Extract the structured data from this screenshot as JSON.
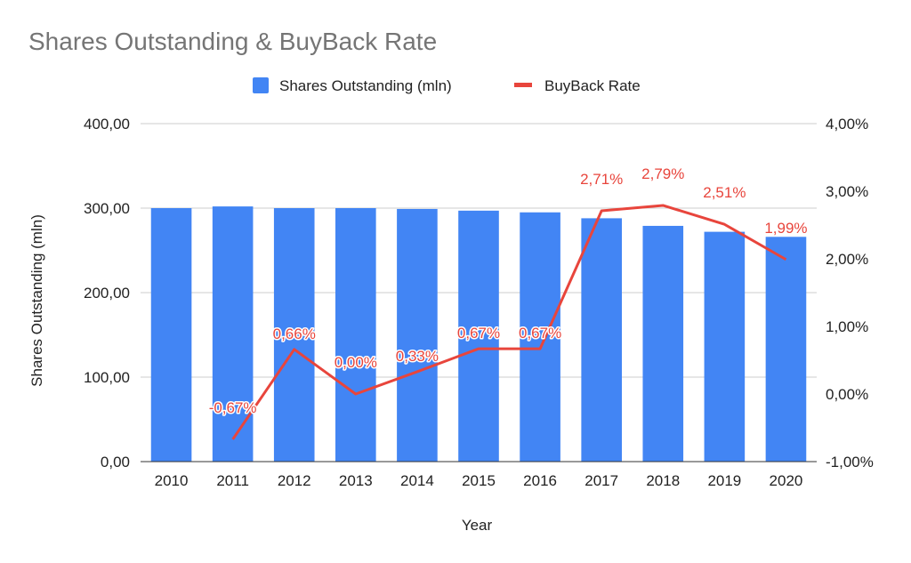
{
  "chart_data": {
    "type": "bar",
    "title": "Shares Outstanding & BuyBack Rate",
    "xlabel": "Year",
    "ylabel": "Shares Outstanding (mln)",
    "y2label": "",
    "categories": [
      "2010",
      "2011",
      "2012",
      "2013",
      "2014",
      "2015",
      "2016",
      "2017",
      "2018",
      "2019",
      "2020"
    ],
    "ylim": [
      0,
      400
    ],
    "y2lim": [
      -1,
      4
    ],
    "y_ticks": [
      "0,00",
      "100,00",
      "200,00",
      "300,00",
      "400,00"
    ],
    "y2_ticks": [
      "-1,00%",
      "0,00%",
      "1,00%",
      "2,00%",
      "3,00%",
      "4,00%"
    ],
    "grid": true,
    "legend_position": "top",
    "series": [
      {
        "name": "Shares Outstanding (mln)",
        "type": "bar",
        "axis": "left",
        "color": "#4285f4",
        "values": [
          300,
          302,
          300,
          300,
          299,
          297,
          295,
          288,
          279,
          272,
          266
        ]
      },
      {
        "name": "BuyBack Rate",
        "type": "line",
        "axis": "right",
        "color": "#e8453c",
        "values": [
          null,
          -0.67,
          0.66,
          0.0,
          0.33,
          0.67,
          0.67,
          2.71,
          2.79,
          2.51,
          1.99
        ],
        "labels": [
          "",
          "-0,67%",
          "0,66%",
          "0,00%",
          "0,33%",
          "0,67%",
          "0,67%",
          "2,71%",
          "2,79%",
          "2,51%",
          "1,99%"
        ]
      }
    ]
  }
}
